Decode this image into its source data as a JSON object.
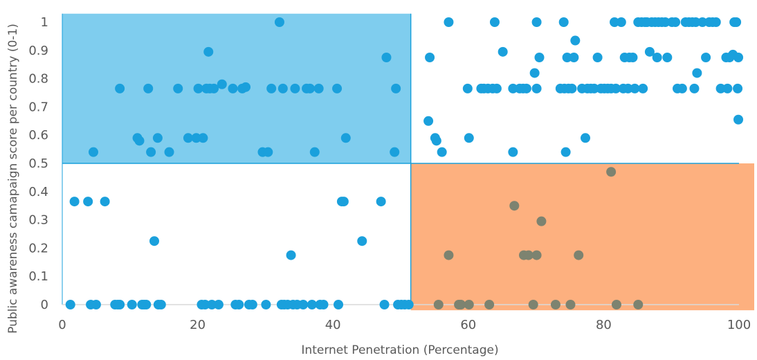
{
  "chart_data": {
    "type": "scatter",
    "title": "",
    "xlabel": "Internet Penetration (Percentage)",
    "ylabel": "Public awareness camapaign score per country (0-1)",
    "xlim": [
      0,
      100
    ],
    "ylim": [
      0,
      1
    ],
    "x_ticks": [
      "0",
      "20",
      "40",
      "60",
      "80",
      "100"
    ],
    "y_ticks": [
      "0",
      "0.1",
      "0.2",
      "0.3",
      "0.4",
      "0.5",
      "0.6",
      "0.7",
      "0.8",
      "0.9",
      "1"
    ],
    "grid": false,
    "legend": "none",
    "threshold": {
      "x": 51.5,
      "y": 0.5
    },
    "colors": {
      "points": "#1aa0dc",
      "points_in_orange_region": "#7d8370",
      "top_left_region": "#7fcdee",
      "bottom_right_region": "#fdb07f",
      "quadrant_lines": "#1aa0dc",
      "axis": "#d9d9d9",
      "text": "#595959"
    },
    "regions": [
      {
        "name": "top-left",
        "x": [
          0,
          51.5
        ],
        "y": [
          0.5,
          1.03
        ],
        "color": "#7fcdee"
      },
      {
        "name": "bottom-right",
        "x": [
          51.5,
          100
        ],
        "y": [
          -0.02,
          0.5
        ],
        "color": "#fdb07f"
      }
    ],
    "series": [
      {
        "points": [
          [
            1.2,
            0
          ],
          [
            1.8,
            0.365
          ],
          [
            3.8,
            0.365
          ],
          [
            4.2,
            0
          ],
          [
            5.0,
            0
          ],
          [
            4.6,
            0.54
          ],
          [
            6.3,
            0.365
          ],
          [
            7.8,
            0
          ],
          [
            8.2,
            0
          ],
          [
            8.5,
            0
          ],
          [
            8.5,
            0.765
          ],
          [
            10.3,
            0
          ],
          [
            11.1,
            0.59
          ],
          [
            11.4,
            0.58
          ],
          [
            11.8,
            0
          ],
          [
            12.1,
            0
          ],
          [
            12.4,
            0
          ],
          [
            12.7,
            0.765
          ],
          [
            13.1,
            0.54
          ],
          [
            13.6,
            0.225
          ],
          [
            14.1,
            0.59
          ],
          [
            14.2,
            0
          ],
          [
            14.6,
            0
          ],
          [
            15.8,
            0.54
          ],
          [
            17.1,
            0.765
          ],
          [
            18.6,
            0.59
          ],
          [
            19.8,
            0.59
          ],
          [
            20.1,
            0.765
          ],
          [
            20.6,
            0
          ],
          [
            20.8,
            0.59
          ],
          [
            21.1,
            0
          ],
          [
            21.3,
            0.765
          ],
          [
            21.6,
            0.895
          ],
          [
            21.8,
            0.765
          ],
          [
            22.1,
            0
          ],
          [
            22.4,
            0.765
          ],
          [
            23.1,
            0
          ],
          [
            23.6,
            0.78
          ],
          [
            25.2,
            0.765
          ],
          [
            25.6,
            0
          ],
          [
            26.1,
            0
          ],
          [
            26.6,
            0.765
          ],
          [
            27.1,
            0.77
          ],
          [
            27.6,
            0
          ],
          [
            28.1,
            0
          ],
          [
            29.6,
            0.54
          ],
          [
            30.1,
            0
          ],
          [
            30.4,
            0.54
          ],
          [
            30.9,
            0.765
          ],
          [
            32.1,
            1.0
          ],
          [
            32.4,
            0
          ],
          [
            32.6,
            0.765
          ],
          [
            32.8,
            0
          ],
          [
            33.3,
            0
          ],
          [
            33.8,
            0.175
          ],
          [
            34.1,
            0
          ],
          [
            34.4,
            0.765
          ],
          [
            34.7,
            0
          ],
          [
            35.6,
            0
          ],
          [
            36.1,
            0.765
          ],
          [
            36.6,
            0.765
          ],
          [
            36.9,
            0
          ],
          [
            37.3,
            0.54
          ],
          [
            37.9,
            0.765
          ],
          [
            38.1,
            0
          ],
          [
            38.6,
            0
          ],
          [
            40.6,
            0.765
          ],
          [
            40.8,
            0
          ],
          [
            41.3,
            0.365
          ],
          [
            41.6,
            0.365
          ],
          [
            41.9,
            0.59
          ],
          [
            44.3,
            0.225
          ],
          [
            47.1,
            0.365
          ],
          [
            47.6,
            0
          ],
          [
            47.9,
            0.875
          ],
          [
            49.1,
            0.54
          ],
          [
            49.3,
            0.765
          ],
          [
            49.6,
            0
          ],
          [
            50.1,
            0
          ],
          [
            50.6,
            0
          ],
          [
            51.2,
            0
          ],
          [
            54.1,
            0.65
          ],
          [
            54.3,
            0.875
          ],
          [
            55.1,
            0.59
          ],
          [
            55.3,
            0.58
          ],
          [
            55.6,
            0
          ],
          [
            56.1,
            0.54
          ],
          [
            57.1,
            1.0
          ],
          [
            57.1,
            0.175
          ],
          [
            58.6,
            0
          ],
          [
            58.9,
            0
          ],
          [
            59.9,
            0.765
          ],
          [
            60.1,
            0.59
          ],
          [
            60.1,
            0
          ],
          [
            61.9,
            0.765
          ],
          [
            62.3,
            0.765
          ],
          [
            62.9,
            0.765
          ],
          [
            63.1,
            0
          ],
          [
            63.6,
            0.765
          ],
          [
            63.9,
            1.0
          ],
          [
            64.2,
            0.765
          ],
          [
            65.1,
            0.895
          ],
          [
            66.6,
            0.765
          ],
          [
            66.6,
            0.54
          ],
          [
            66.8,
            0.35
          ],
          [
            67.6,
            0.765
          ],
          [
            68.1,
            0.765
          ],
          [
            68.2,
            0.175
          ],
          [
            68.6,
            0.765
          ],
          [
            68.9,
            0.175
          ],
          [
            69.6,
            0
          ],
          [
            69.8,
            0.82
          ],
          [
            70.1,
            1.0
          ],
          [
            70.1,
            0.765
          ],
          [
            70.1,
            0.175
          ],
          [
            70.5,
            0.875
          ],
          [
            70.8,
            0.295
          ],
          [
            72.9,
            0
          ],
          [
            73.6,
            0.765
          ],
          [
            74.1,
            1.0
          ],
          [
            74.2,
            0.765
          ],
          [
            74.4,
            0.54
          ],
          [
            74.6,
            0.875
          ],
          [
            74.8,
            0.765
          ],
          [
            75.1,
            0
          ],
          [
            75.3,
            0.765
          ],
          [
            75.6,
            0.875
          ],
          [
            75.8,
            0.935
          ],
          [
            76.3,
            0.175
          ],
          [
            76.8,
            0.765
          ],
          [
            77.3,
            0.59
          ],
          [
            77.6,
            0.765
          ],
          [
            78.1,
            0.765
          ],
          [
            78.6,
            0.765
          ],
          [
            79.1,
            0.875
          ],
          [
            79.6,
            0.765
          ],
          [
            80.1,
            0.765
          ],
          [
            80.6,
            0.765
          ],
          [
            81.1,
            0.765
          ],
          [
            81.1,
            0.47
          ],
          [
            81.6,
            1.0
          ],
          [
            81.8,
            0.765
          ],
          [
            81.9,
            0
          ],
          [
            82.6,
            1.0
          ],
          [
            82.9,
            0.765
          ],
          [
            83.1,
            0.875
          ],
          [
            83.6,
            0.765
          ],
          [
            83.8,
            0.875
          ],
          [
            84.3,
            0.875
          ],
          [
            84.6,
            0.765
          ],
          [
            85.1,
            1.0
          ],
          [
            85.1,
            0
          ],
          [
            85.6,
            1.0
          ],
          [
            85.8,
            0.765
          ],
          [
            86.1,
            1.0
          ],
          [
            86.4,
            1.0
          ],
          [
            86.8,
            0.895
          ],
          [
            87.1,
            1.0
          ],
          [
            87.6,
            1.0
          ],
          [
            87.9,
            0.875
          ],
          [
            88.1,
            1.0
          ],
          [
            88.6,
            1.0
          ],
          [
            89.1,
            1.0
          ],
          [
            89.4,
            0.875
          ],
          [
            90.1,
            1.0
          ],
          [
            90.6,
            1.0
          ],
          [
            90.9,
            0.765
          ],
          [
            91.6,
            0.765
          ],
          [
            92.1,
            1.0
          ],
          [
            92.6,
            1.0
          ],
          [
            93.1,
            1.0
          ],
          [
            93.4,
            0.765
          ],
          [
            93.6,
            1.0
          ],
          [
            93.8,
            0.82
          ],
          [
            94.6,
            1.0
          ],
          [
            95.1,
            0.875
          ],
          [
            95.6,
            1.0
          ],
          [
            96.1,
            1.0
          ],
          [
            96.6,
            1.0
          ],
          [
            97.3,
            0.765
          ],
          [
            98.1,
            0.875
          ],
          [
            98.3,
            0.765
          ],
          [
            98.6,
            0.875
          ],
          [
            99.1,
            0.885
          ],
          [
            99.3,
            1.0
          ],
          [
            99.6,
            1.0
          ],
          [
            99.8,
            0.765
          ],
          [
            99.9,
            0.875
          ],
          [
            99.9,
            0.655
          ]
        ]
      }
    ]
  }
}
